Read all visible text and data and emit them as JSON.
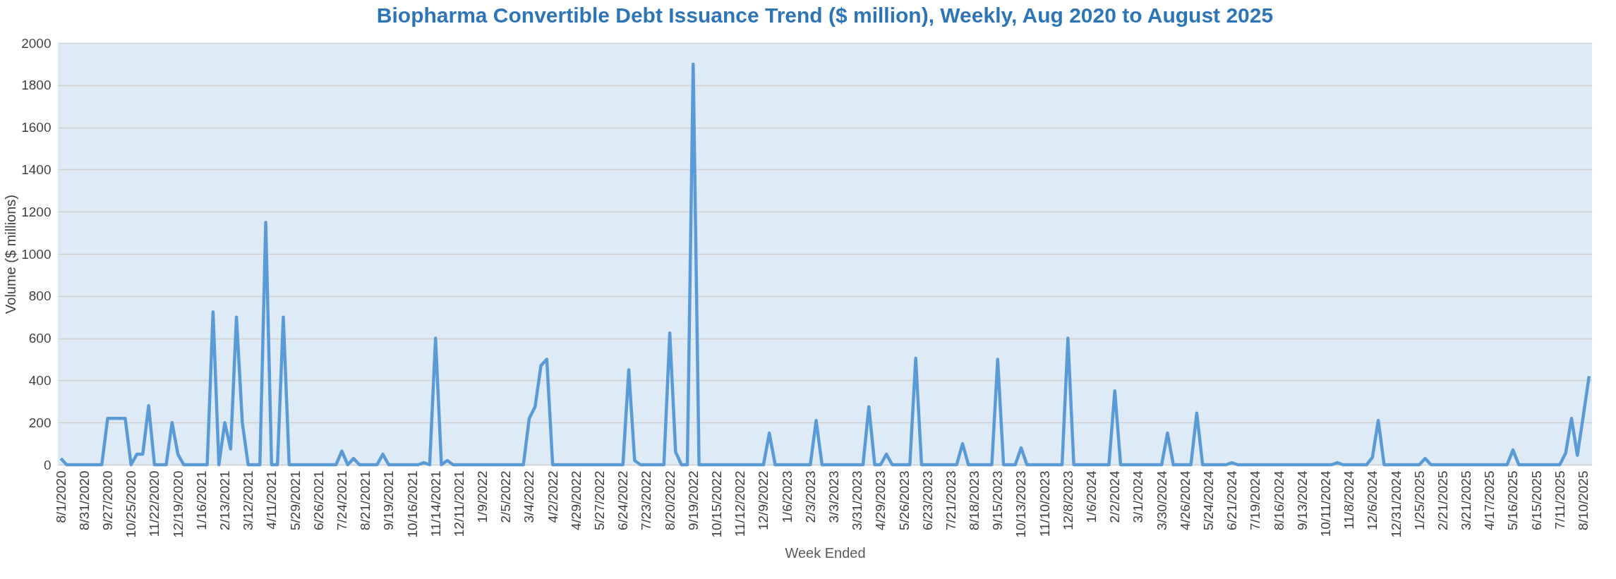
{
  "chart_data": {
    "type": "line",
    "title": "Biopharma Convertible Debt Issuance Trend ($ million), Weekly, Aug 2020 to August 2025",
    "xlabel": "Week Ended",
    "ylabel": "Volume ($ millions)",
    "categories": [
      "8/1/2020",
      null,
      null,
      null,
      "8/31/2020",
      null,
      null,
      null,
      "9/27/2020",
      null,
      null,
      null,
      "10/25/2020",
      null,
      null,
      null,
      "11/22/2020",
      null,
      null,
      null,
      "12/19/2020",
      null,
      null,
      null,
      "1/16/2021",
      null,
      null,
      null,
      "2/13/2021",
      null,
      null,
      null,
      "3/12/2021",
      null,
      null,
      null,
      "4/11/2021",
      null,
      null,
      null,
      "5/29/2021",
      null,
      null,
      null,
      "6/26/2021",
      null,
      null,
      null,
      "7/24/2021",
      null,
      null,
      null,
      "8/21/2021",
      null,
      null,
      null,
      "9/19/2021",
      null,
      null,
      null,
      "10/16/2021",
      null,
      null,
      null,
      "11/14/2021",
      null,
      null,
      null,
      "12/11/2021",
      null,
      null,
      null,
      "1/9/2022",
      null,
      null,
      null,
      "2/5/2022",
      null,
      null,
      null,
      "3/4/2022",
      null,
      null,
      null,
      "4/2/2022",
      null,
      null,
      null,
      "4/29/2022",
      null,
      null,
      null,
      "5/27/2022",
      null,
      null,
      null,
      "6/24/2022",
      null,
      null,
      null,
      "7/23/2022",
      null,
      null,
      null,
      "8/20/2022",
      null,
      null,
      null,
      "9/19/2022",
      null,
      null,
      null,
      "10/15/2022",
      null,
      null,
      null,
      "11/12/2022",
      null,
      null,
      null,
      "12/9/2022",
      null,
      null,
      null,
      "1/6/2023",
      null,
      null,
      null,
      "2/3/2023",
      null,
      null,
      null,
      "3/3/2023",
      null,
      null,
      null,
      "3/31/2023",
      null,
      null,
      null,
      "4/29/2023",
      null,
      null,
      null,
      "5/26/2023",
      null,
      null,
      null,
      "6/23/2023",
      null,
      null,
      null,
      "7/21/2023",
      null,
      null,
      null,
      "8/18/2023",
      null,
      null,
      null,
      "9/15/2023",
      null,
      null,
      null,
      "10/13/2023",
      null,
      null,
      null,
      "11/10/2023",
      null,
      null,
      null,
      "12/8/2023",
      null,
      null,
      null,
      "1/6/2024",
      null,
      null,
      null,
      "2/2/2024",
      null,
      null,
      null,
      "3/1/2024",
      null,
      null,
      null,
      "3/30/2024",
      null,
      null,
      null,
      "4/26/2024",
      null,
      null,
      null,
      "5/24/2024",
      null,
      null,
      null,
      "6/21/2024",
      null,
      null,
      null,
      "7/19/2024",
      null,
      null,
      null,
      "8/16/2024",
      null,
      null,
      null,
      "9/13/2024",
      null,
      null,
      null,
      "10/11/2024",
      null,
      null,
      null,
      "11/8/2024",
      null,
      null,
      null,
      "12/6/2024",
      null,
      null,
      null,
      "12/31/2024",
      null,
      null,
      null,
      "1/25/2025",
      null,
      null,
      null,
      "2/21/2025",
      null,
      null,
      null,
      "3/21/2025",
      null,
      null,
      null,
      "4/17/2025",
      null,
      null,
      null,
      "5/16/2025",
      null,
      null,
      null,
      "6/15/2025",
      null,
      null,
      null,
      "7/11/2025",
      null,
      null,
      null,
      "8/10/2025",
      null
    ],
    "series": [
      {
        "color": "#5b9bd5",
        "values": [
          30,
          0,
          0,
          0,
          0,
          0,
          0,
          0,
          220,
          220,
          220,
          220,
          0,
          50,
          50,
          280,
          0,
          0,
          0,
          200,
          50,
          0,
          0,
          0,
          0,
          0,
          725,
          0,
          200,
          75,
          700,
          200,
          0,
          0,
          0,
          1150,
          0,
          0,
          700,
          0,
          0,
          0,
          0,
          0,
          0,
          0,
          0,
          0,
          65,
          0,
          30,
          0,
          0,
          0,
          0,
          50,
          0,
          0,
          0,
          0,
          0,
          0,
          10,
          0,
          600,
          0,
          20,
          0,
          0,
          0,
          0,
          0,
          0,
          0,
          0,
          0,
          0,
          0,
          0,
          0,
          220,
          275,
          470,
          500,
          0,
          0,
          0,
          0,
          0,
          0,
          0,
          0,
          0,
          0,
          0,
          0,
          0,
          450,
          20,
          0,
          0,
          0,
          0,
          0,
          625,
          60,
          0,
          0,
          1900,
          0,
          0,
          0,
          0,
          0,
          0,
          0,
          0,
          0,
          0,
          0,
          0,
          150,
          0,
          0,
          0,
          0,
          0,
          0,
          0,
          210,
          0,
          0,
          0,
          0,
          0,
          0,
          0,
          0,
          275,
          0,
          0,
          50,
          0,
          0,
          0,
          0,
          505,
          0,
          0,
          0,
          0,
          0,
          0,
          0,
          100,
          0,
          0,
          0,
          0,
          0,
          500,
          0,
          0,
          0,
          80,
          0,
          0,
          0,
          0,
          0,
          0,
          0,
          600,
          0,
          0,
          0,
          0,
          0,
          0,
          0,
          350,
          0,
          0,
          0,
          0,
          0,
          0,
          0,
          0,
          150,
          0,
          0,
          0,
          0,
          245,
          0,
          0,
          0,
          0,
          0,
          10,
          0,
          0,
          0,
          0,
          0,
          0,
          0,
          0,
          0,
          0,
          0,
          0,
          0,
          0,
          0,
          0,
          0,
          10,
          0,
          0,
          0,
          0,
          0,
          35,
          210,
          0,
          0,
          0,
          0,
          0,
          0,
          0,
          30,
          0,
          0,
          0,
          0,
          0,
          0,
          0,
          0,
          0,
          0,
          0,
          0,
          0,
          0,
          70,
          0,
          0,
          0,
          0,
          0,
          0,
          0,
          0,
          55,
          220,
          45,
          230,
          420
        ]
      }
    ],
    "ylim": [
      0,
      2000
    ],
    "yticks": [
      0,
      200,
      400,
      600,
      800,
      1000,
      1200,
      1400,
      1600,
      1800,
      2000
    ],
    "grid": "y",
    "legend": false,
    "marker": "none",
    "line_style": "solid"
  }
}
